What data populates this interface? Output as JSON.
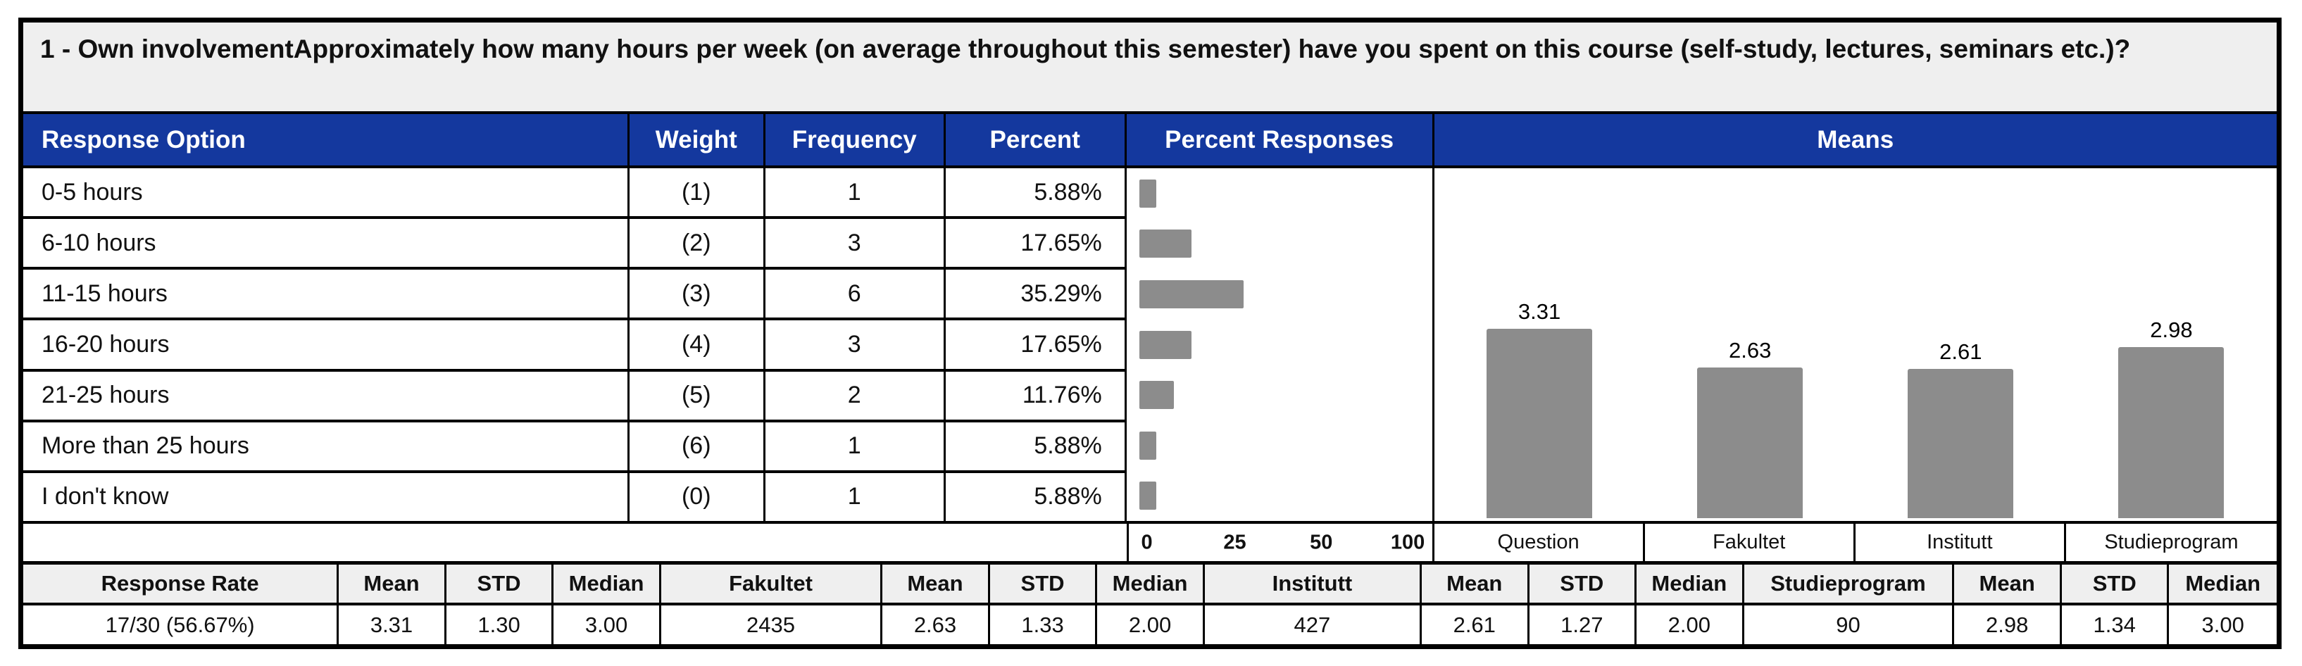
{
  "title": "1 - Own involvementApproximately how many hours per week (on average throughout this semester) have you spent on this course (self-study, lectures, seminars etc.)?",
  "colors": {
    "header_blue": "#14389E",
    "bar_gray": "#8C8C8C",
    "panel_gray": "#efefef",
    "border_black": "#000000"
  },
  "table": {
    "headers": [
      "Response Option",
      "Weight",
      "Frequency",
      "Percent",
      "Percent Responses",
      "Means"
    ],
    "rows": [
      {
        "option": "0-5 hours",
        "weight": "(1)",
        "frequency": "1",
        "percent": "5.88%",
        "percent_value": 5.88
      },
      {
        "option": "6-10 hours",
        "weight": "(2)",
        "frequency": "3",
        "percent": "17.65%",
        "percent_value": 17.65
      },
      {
        "option": "11-15 hours",
        "weight": "(3)",
        "frequency": "6",
        "percent": "35.29%",
        "percent_value": 35.29
      },
      {
        "option": "16-20 hours",
        "weight": "(4)",
        "frequency": "3",
        "percent": "17.65%",
        "percent_value": 17.65
      },
      {
        "option": "21-25 hours",
        "weight": "(5)",
        "frequency": "2",
        "percent": "11.76%",
        "percent_value": 11.76
      },
      {
        "option": "More than 25 hours",
        "weight": "(6)",
        "frequency": "1",
        "percent": "5.88%",
        "percent_value": 5.88
      },
      {
        "option": "I don't know",
        "weight": "(0)",
        "frequency": "1",
        "percent": "5.88%",
        "percent_value": 5.88
      }
    ]
  },
  "percent_axis": {
    "ticks": [
      "0",
      "25",
      "50",
      "100"
    ],
    "positions_pct": [
      6,
      35,
      63.5,
      92
    ]
  },
  "means_chart": {
    "categories": [
      "Question",
      "Fakultet",
      "Institutt",
      "Studieprogram"
    ],
    "values": [
      3.31,
      2.63,
      2.61,
      2.98
    ],
    "labels": [
      "3.31",
      "2.63",
      "2.61",
      "2.98"
    ],
    "scale_max": 6
  },
  "summary": {
    "headers": [
      "Response Rate",
      "Mean",
      "STD",
      "Median",
      "Fakultet",
      "Mean",
      "STD",
      "Median",
      "Institutt",
      "Mean",
      "STD",
      "Median",
      "Studieprogram",
      "Mean",
      "STD",
      "Median"
    ],
    "values": [
      "17/30 (56.67%)",
      "3.31",
      "1.30",
      "3.00",
      "2435",
      "2.63",
      "1.33",
      "2.00",
      "427",
      "2.61",
      "1.27",
      "2.00",
      "90",
      "2.98",
      "1.34",
      "3.00"
    ]
  },
  "chart_data": [
    {
      "type": "bar",
      "title": "Percent Responses",
      "orientation": "horizontal",
      "categories": [
        "0-5 hours",
        "6-10 hours",
        "11-15 hours",
        "16-20 hours",
        "21-25 hours",
        "More than 25 hours",
        "I don't know"
      ],
      "values": [
        5.88,
        17.65,
        35.29,
        17.65,
        11.76,
        5.88,
        5.88
      ],
      "xlabel": "",
      "ylabel": "",
      "tick_labels": [
        "0",
        "25",
        "50",
        "100"
      ],
      "xlim": [
        0,
        100
      ],
      "grid": false,
      "legend": false
    },
    {
      "type": "bar",
      "title": "Means",
      "orientation": "vertical",
      "categories": [
        "Question",
        "Fakultet",
        "Institutt",
        "Studieprogram"
      ],
      "values": [
        3.31,
        2.63,
        2.61,
        2.98
      ],
      "xlabel": "",
      "ylabel": "",
      "ylim": [
        0,
        6
      ],
      "grid": false,
      "legend": false,
      "data_labels": [
        "3.31",
        "2.63",
        "2.61",
        "2.98"
      ]
    }
  ]
}
